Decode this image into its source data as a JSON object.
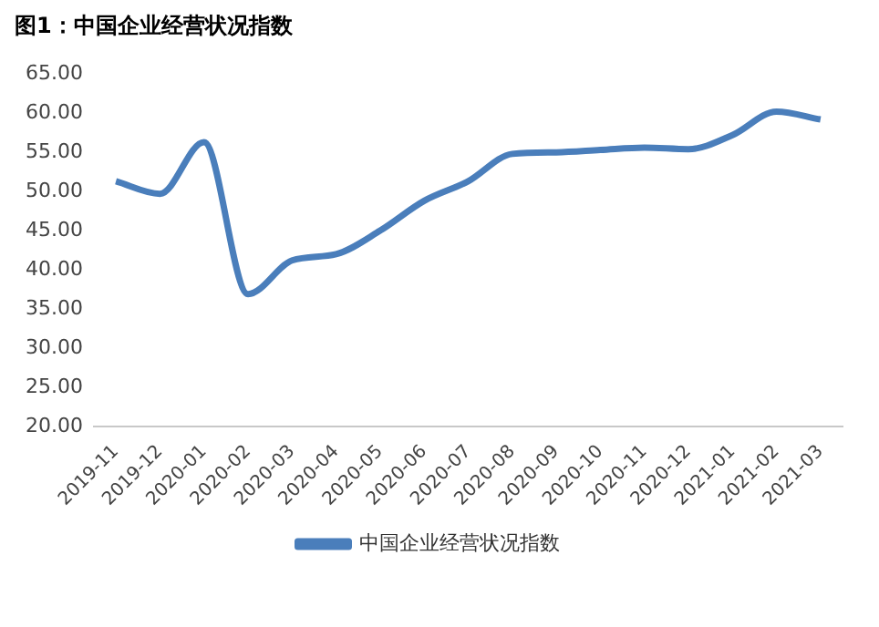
{
  "chart_data": {
    "type": "line",
    "title": "图1：中国企业经营状况指数",
    "categories": [
      "2019-11",
      "2019-12",
      "2020-01",
      "2020-02",
      "2020-03",
      "2020-04",
      "2020-05",
      "2020-06",
      "2020-07",
      "2020-08",
      "2020-09",
      "2020-10",
      "2020-11",
      "2020-12",
      "2021-01",
      "2021-02",
      "2021-03"
    ],
    "series": [
      {
        "name": "中国企业经营状况指数",
        "color": "#4a7ebb",
        "values": [
          51.3,
          49.7,
          56.3,
          36.9,
          41.2,
          42.0,
          45.0,
          48.8,
          51.3,
          54.8,
          55.0,
          55.3,
          55.6,
          55.4,
          57.2,
          60.2,
          59.2
        ]
      }
    ],
    "ylim": [
      20,
      65
    ],
    "yticks": [
      {
        "value": 20,
        "label": "20.00"
      },
      {
        "value": 25,
        "label": "25.00"
      },
      {
        "value": 30,
        "label": "30.00"
      },
      {
        "value": 35,
        "label": "35.00"
      },
      {
        "value": 40,
        "label": "40.00"
      },
      {
        "value": 45,
        "label": "45.00"
      },
      {
        "value": 50,
        "label": "50.00"
      },
      {
        "value": 55,
        "label": "55.00"
      },
      {
        "value": 60,
        "label": "60.00"
      },
      {
        "value": 65,
        "label": "65.00"
      }
    ],
    "grid": false,
    "legend": "bottom",
    "marker": "none",
    "line_style": "solid"
  }
}
